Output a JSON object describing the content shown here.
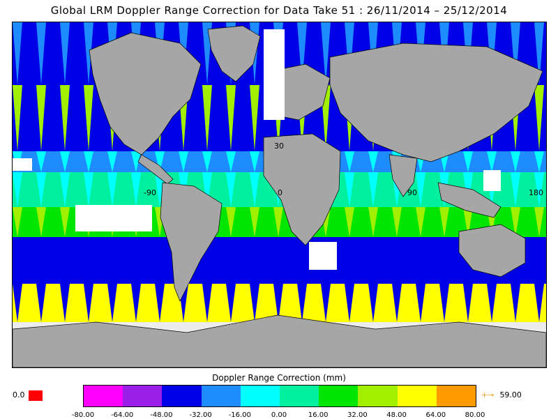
{
  "title": "Global LRM Doppler Range Correction for Data Take 51 : 26/11/2014 – 25/12/2014",
  "colorbar": {
    "label": "Doppler Range Correction (mm)",
    "ticks": [
      "-80.00",
      "-64.00",
      "-48.00",
      "-32.00",
      "-16.00",
      "0.00",
      "16.00",
      "32.00",
      "48.00",
      "64.00",
      "80.00"
    ],
    "colors": [
      "#ff00ff",
      "#9a1ee6",
      "#0000e6",
      "#1e8cff",
      "#00ffff",
      "#00f0a0",
      "#00e600",
      "#a0f000",
      "#ffff00",
      "#ff9b00"
    ],
    "under_value": "0.0",
    "under_color": "#ff0000",
    "over_arrow": "+→",
    "over_value": "59.00"
  },
  "map": {
    "lat_labels": [
      "30"
    ],
    "lon_labels": [
      "-90",
      "0",
      "90",
      "180"
    ],
    "land_color": "#a0a0a0",
    "nodata_color": "#ffffff"
  }
}
